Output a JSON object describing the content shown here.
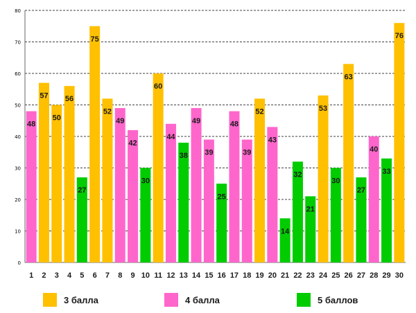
{
  "chart_data": {
    "type": "bar",
    "title": "",
    "xlabel": "",
    "ylabel": "",
    "ylim": [
      0,
      80
    ],
    "yticks": [
      0,
      10,
      20,
      30,
      40,
      50,
      60,
      70,
      80
    ],
    "grid": true,
    "legend_position": "bottom",
    "categories": [
      "1",
      "2",
      "3",
      "4",
      "5",
      "6",
      "7",
      "8",
      "9",
      "10",
      "11",
      "12",
      "13",
      "14",
      "15",
      "16",
      "17",
      "18",
      "19",
      "20",
      "21",
      "22",
      "23",
      "24",
      "25",
      "26",
      "27",
      "28",
      "29",
      "30"
    ],
    "values": [
      48,
      57,
      50,
      56,
      27,
      75,
      52,
      49,
      42,
      30,
      60,
      44,
      38,
      49,
      39,
      25,
      48,
      39,
      52,
      43,
      14,
      32,
      21,
      53,
      30,
      63,
      27,
      40,
      33,
      76
    ],
    "groups": [
      "4",
      "3",
      "3",
      "3",
      "5",
      "3",
      "3",
      "4",
      "4",
      "5",
      "3",
      "4",
      "5",
      "4",
      "4",
      "5",
      "4",
      "4",
      "3",
      "4",
      "5",
      "5",
      "5",
      "3",
      "5",
      "3",
      "5",
      "4",
      "5",
      "3"
    ],
    "series": [
      {
        "key": "3",
        "name": "3 балла",
        "color": "#ffc000"
      },
      {
        "key": "4",
        "name": "4 балла",
        "color": "#ff66cc"
      },
      {
        "key": "5",
        "name": "5 баллов",
        "color": "#00cc00"
      }
    ]
  },
  "legend": {
    "items": [
      {
        "label": "3 балла",
        "color": "#ffc000"
      },
      {
        "label": "4 балла",
        "color": "#ff66cc"
      },
      {
        "label": "5 баллов",
        "color": "#00cc00"
      }
    ]
  }
}
